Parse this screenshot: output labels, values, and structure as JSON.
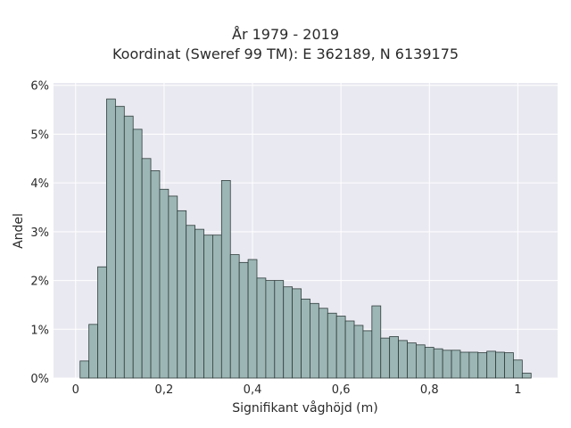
{
  "chart_data": {
    "type": "bar",
    "title": "År 1979 - 2019",
    "subtitle": "Koordinat (Sweref 99 TM): E 362189, N 6139175",
    "xlabel": "Signifikant våghöjd (m)",
    "ylabel": "Andel",
    "xlim": [
      -0.05,
      1.09
    ],
    "ylim": [
      0,
      6.05
    ],
    "x_ticks": [
      0,
      0.2,
      0.4,
      0.6,
      0.8,
      1.0
    ],
    "x_tick_labels": [
      "0",
      "0,2",
      "0,4",
      "0,6",
      "0,8",
      "1"
    ],
    "y_ticks": [
      0,
      1,
      2,
      3,
      4,
      5,
      6
    ],
    "y_tick_labels": [
      "0%",
      "1%",
      "2%",
      "3%",
      "4%",
      "5%",
      "6%"
    ],
    "grid": true,
    "bin_width": 0.02,
    "bin_starts": [
      0.01,
      0.03,
      0.05,
      0.07,
      0.09,
      0.11,
      0.13,
      0.15,
      0.17,
      0.19,
      0.21,
      0.23,
      0.25,
      0.27,
      0.29,
      0.31,
      0.33,
      0.35,
      0.37,
      0.39,
      0.41,
      0.43,
      0.45,
      0.47,
      0.49,
      0.51,
      0.53,
      0.55,
      0.57,
      0.59,
      0.61,
      0.63,
      0.65,
      0.67,
      0.69,
      0.71,
      0.73,
      0.75,
      0.77,
      0.79,
      0.81,
      0.83,
      0.85,
      0.87,
      0.89,
      0.91,
      0.93,
      0.95,
      0.97,
      0.99,
      1.01
    ],
    "values": [
      0.35,
      1.1,
      2.28,
      5.72,
      5.57,
      5.37,
      5.1,
      4.5,
      4.25,
      3.87,
      3.73,
      3.43,
      3.13,
      3.05,
      2.93,
      2.93,
      4.05,
      2.53,
      2.37,
      2.43,
      2.05,
      2.0,
      2.0,
      1.87,
      1.83,
      1.62,
      1.53,
      1.43,
      1.33,
      1.27,
      1.17,
      1.08,
      0.97,
      1.48,
      0.82,
      0.85,
      0.77,
      0.72,
      0.68,
      0.63,
      0.6,
      0.57,
      0.57,
      0.53,
      0.53,
      0.52,
      0.55,
      0.53,
      0.52,
      0.37,
      0.1
    ],
    "colors": {
      "plot_background": "#e9e9f1",
      "grid": "#ffffff",
      "bar_fill": "#9cb6b5",
      "bar_edge": "#2f3d3c"
    }
  }
}
